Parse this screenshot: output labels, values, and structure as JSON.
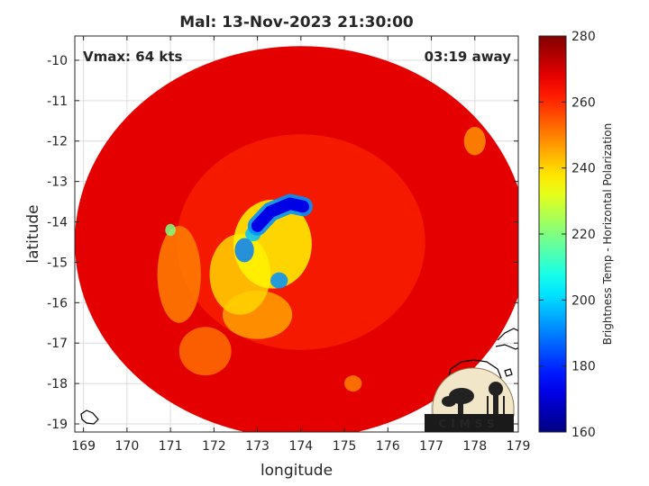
{
  "chart_data": {
    "type": "heatmap",
    "title": "Mal: 13-Nov-2023 21:30:00",
    "annotation_left": "Vmax: 64 kts",
    "annotation_right": "03:19 away",
    "xlabel": "longitude",
    "ylabel": "latitude",
    "xlim": [
      168.8,
      179.0
    ],
    "ylim": [
      -19.2,
      -9.4
    ],
    "xticks": [
      169,
      170,
      171,
      172,
      173,
      174,
      175,
      176,
      177,
      178,
      179
    ],
    "yticks": [
      -10,
      -11,
      -12,
      -13,
      -14,
      -15,
      -16,
      -17,
      -18,
      -19
    ],
    "grid": true,
    "colorbar": {
      "label": "Brightness Temp - Horizontal Polarization",
      "min": 160,
      "max": 280,
      "ticks": [
        160,
        180,
        200,
        220,
        240,
        260,
        280
      ],
      "colormap": "jet"
    },
    "swath": {
      "center": [
        174.0,
        -14.5
      ],
      "radius_lon": 5.2,
      "radius_lat": 4.85,
      "background_value": 268
    },
    "features": [
      {
        "type": "band",
        "points": [
          [
            173.0,
            -14.1
          ],
          [
            173.3,
            -13.75
          ],
          [
            173.75,
            -13.55
          ],
          [
            174.05,
            -13.62
          ]
        ],
        "value": 172,
        "width": 0.28
      },
      {
        "type": "blob",
        "lon": 172.7,
        "lat": -14.7,
        "rlon": 0.22,
        "rlat": 0.3,
        "value": 190
      },
      {
        "type": "blob",
        "lon": 173.5,
        "lat": -15.45,
        "rlon": 0.2,
        "rlat": 0.2,
        "value": 192
      },
      {
        "type": "blob",
        "lon": 172.9,
        "lat": -14.3,
        "rlon": 0.18,
        "rlat": 0.18,
        "value": 198
      },
      {
        "type": "blob",
        "lon": 173.35,
        "lat": -14.55,
        "rlon": 0.9,
        "rlat": 1.1,
        "value": 236
      },
      {
        "type": "blob",
        "lon": 172.6,
        "lat": -15.3,
        "rlon": 0.7,
        "rlat": 1.0,
        "value": 240
      },
      {
        "type": "blob",
        "lon": 173.0,
        "lat": -16.3,
        "rlon": 0.8,
        "rlat": 0.6,
        "value": 246
      },
      {
        "type": "blob",
        "lon": 171.2,
        "lat": -15.3,
        "rlon": 0.5,
        "rlat": 1.2,
        "value": 250
      },
      {
        "type": "blob",
        "lon": 171.0,
        "lat": -14.2,
        "rlon": 0.12,
        "rlat": 0.15,
        "value": 220
      },
      {
        "type": "blob",
        "lon": 171.8,
        "lat": -17.2,
        "rlon": 0.6,
        "rlat": 0.6,
        "value": 252
      },
      {
        "type": "blob",
        "lon": 178.0,
        "lat": -12.0,
        "rlon": 0.25,
        "rlat": 0.35,
        "value": 248
      },
      {
        "type": "blob",
        "lon": 175.2,
        "lat": -18.0,
        "rlon": 0.2,
        "rlat": 0.2,
        "value": 250
      }
    ]
  },
  "logo": {
    "text": "CIMSS"
  }
}
